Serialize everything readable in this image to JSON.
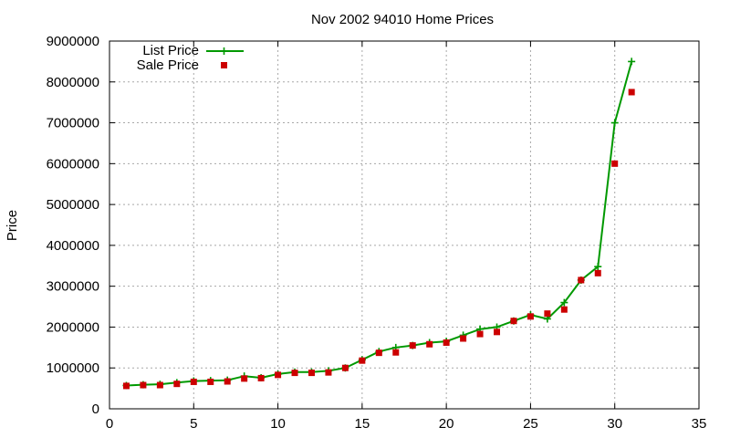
{
  "chart_data": {
    "type": "line",
    "title": "Nov 2002 94010 Home Prices",
    "xlabel": "",
    "ylabel": "Price",
    "xlim": [
      0,
      35
    ],
    "ylim": [
      0,
      9000000
    ],
    "x_ticks": [
      0,
      5,
      10,
      15,
      20,
      25,
      30,
      35
    ],
    "y_ticks": [
      0,
      1000000,
      2000000,
      3000000,
      4000000,
      5000000,
      6000000,
      7000000,
      8000000,
      9000000
    ],
    "grid": true,
    "legend_position": "top-left",
    "series": [
      {
        "name": "List Price",
        "style": "linespoints",
        "marker": "plus",
        "color": "#009900",
        "x": [
          1,
          2,
          3,
          4,
          5,
          6,
          7,
          8,
          9,
          10,
          11,
          12,
          13,
          14,
          15,
          16,
          17,
          18,
          19,
          20,
          21,
          22,
          23,
          24,
          25,
          26,
          27,
          28,
          29,
          30,
          31
        ],
        "values": [
          570000,
          590000,
          600000,
          640000,
          680000,
          690000,
          700000,
          800000,
          760000,
          850000,
          900000,
          900000,
          930000,
          1000000,
          1200000,
          1400000,
          1500000,
          1550000,
          1620000,
          1650000,
          1800000,
          1950000,
          2000000,
          2150000,
          2300000,
          2200000,
          2600000,
          3150000,
          3480000,
          7000000,
          8500000
        ]
      },
      {
        "name": "Sale Price",
        "style": "points",
        "marker": "square",
        "color": "#cc0000",
        "x": [
          1,
          2,
          3,
          4,
          5,
          6,
          7,
          8,
          9,
          10,
          11,
          12,
          13,
          14,
          15,
          16,
          17,
          18,
          19,
          20,
          21,
          22,
          23,
          24,
          25,
          26,
          27,
          28,
          29,
          30,
          31
        ],
        "values": [
          560000,
          580000,
          580000,
          610000,
          660000,
          660000,
          670000,
          740000,
          750000,
          830000,
          880000,
          880000,
          890000,
          1000000,
          1180000,
          1370000,
          1380000,
          1550000,
          1580000,
          1620000,
          1720000,
          1830000,
          1880000,
          2150000,
          2260000,
          2330000,
          2430000,
          3150000,
          3320000,
          6000000,
          7750000
        ]
      }
    ]
  }
}
